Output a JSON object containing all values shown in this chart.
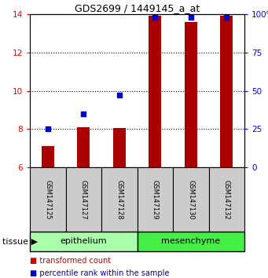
{
  "title": "GDS2699 / 1449145_a_at",
  "samples": [
    "GSM147125",
    "GSM147127",
    "GSM147128",
    "GSM147129",
    "GSM147130",
    "GSM147132"
  ],
  "bar_values": [
    7.1,
    8.1,
    8.05,
    13.9,
    13.6,
    13.9
  ],
  "percentile_values": [
    25,
    35,
    47,
    98,
    98,
    98
  ],
  "ylim_left": [
    6,
    14
  ],
  "ylim_right": [
    0,
    100
  ],
  "yticks_left": [
    6,
    8,
    10,
    12,
    14
  ],
  "yticks_right": [
    0,
    25,
    50,
    75,
    100
  ],
  "ytick_labels_right": [
    "0",
    "25",
    "50",
    "75",
    "100%"
  ],
  "groups": [
    {
      "label": "epithelium",
      "color": "#aaffaa",
      "start": 0,
      "end": 3
    },
    {
      "label": "mesenchyme",
      "color": "#44ee44",
      "start": 3,
      "end": 6
    }
  ],
  "bar_color": "#aa0000",
  "dot_color": "#0000cc",
  "bar_width": 0.35,
  "background_color": "#ffffff",
  "tissue_label": "tissue",
  "legend_items": [
    {
      "label": "transformed count",
      "color": "#cc0000"
    },
    {
      "label": "percentile rank within the sample",
      "color": "#0000cc"
    }
  ],
  "sample_box_color": "#cccccc",
  "title_fontsize": 9,
  "tick_fontsize": 7.5,
  "sample_fontsize": 6,
  "group_fontsize": 8,
  "legend_fontsize": 7
}
